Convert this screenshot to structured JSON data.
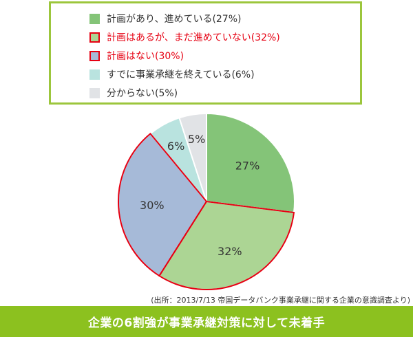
{
  "chart_data": {
    "type": "pie",
    "title": "",
    "slices": [
      {
        "label": "計画があり、進めている(27%)",
        "value": 27,
        "display": "27%",
        "color": "#84c478",
        "highlight": false
      },
      {
        "label": "計画はあるが、まだ進めていない(32%)",
        "value": 32,
        "display": "32%",
        "color": "#acd594",
        "highlight": true
      },
      {
        "label": "計画はない(30%)",
        "value": 30,
        "display": "30%",
        "color": "#a6bad8",
        "highlight": true
      },
      {
        "label": "すでに事業承継を終えている(6%)",
        "value": 6,
        "display": "6%",
        "color": "#b9e3df",
        "highlight": false
      },
      {
        "label": "分からない(5%)",
        "value": 5,
        "display": "5%",
        "color": "#e1e3e6",
        "highlight": false
      }
    ],
    "legend_position": "top",
    "start_angle_deg": 0,
    "direction": "clockwise",
    "highlight_color": "#e60012"
  },
  "source": "(出所：2013/7/13  帝国データバンク事業承継に関する企業の意識調査より)",
  "footer": "企業の6割強が事業承継対策に対して未着手",
  "colors": {
    "legend_border": "#9cc63c",
    "footer_bg": "#8cc11f"
  }
}
